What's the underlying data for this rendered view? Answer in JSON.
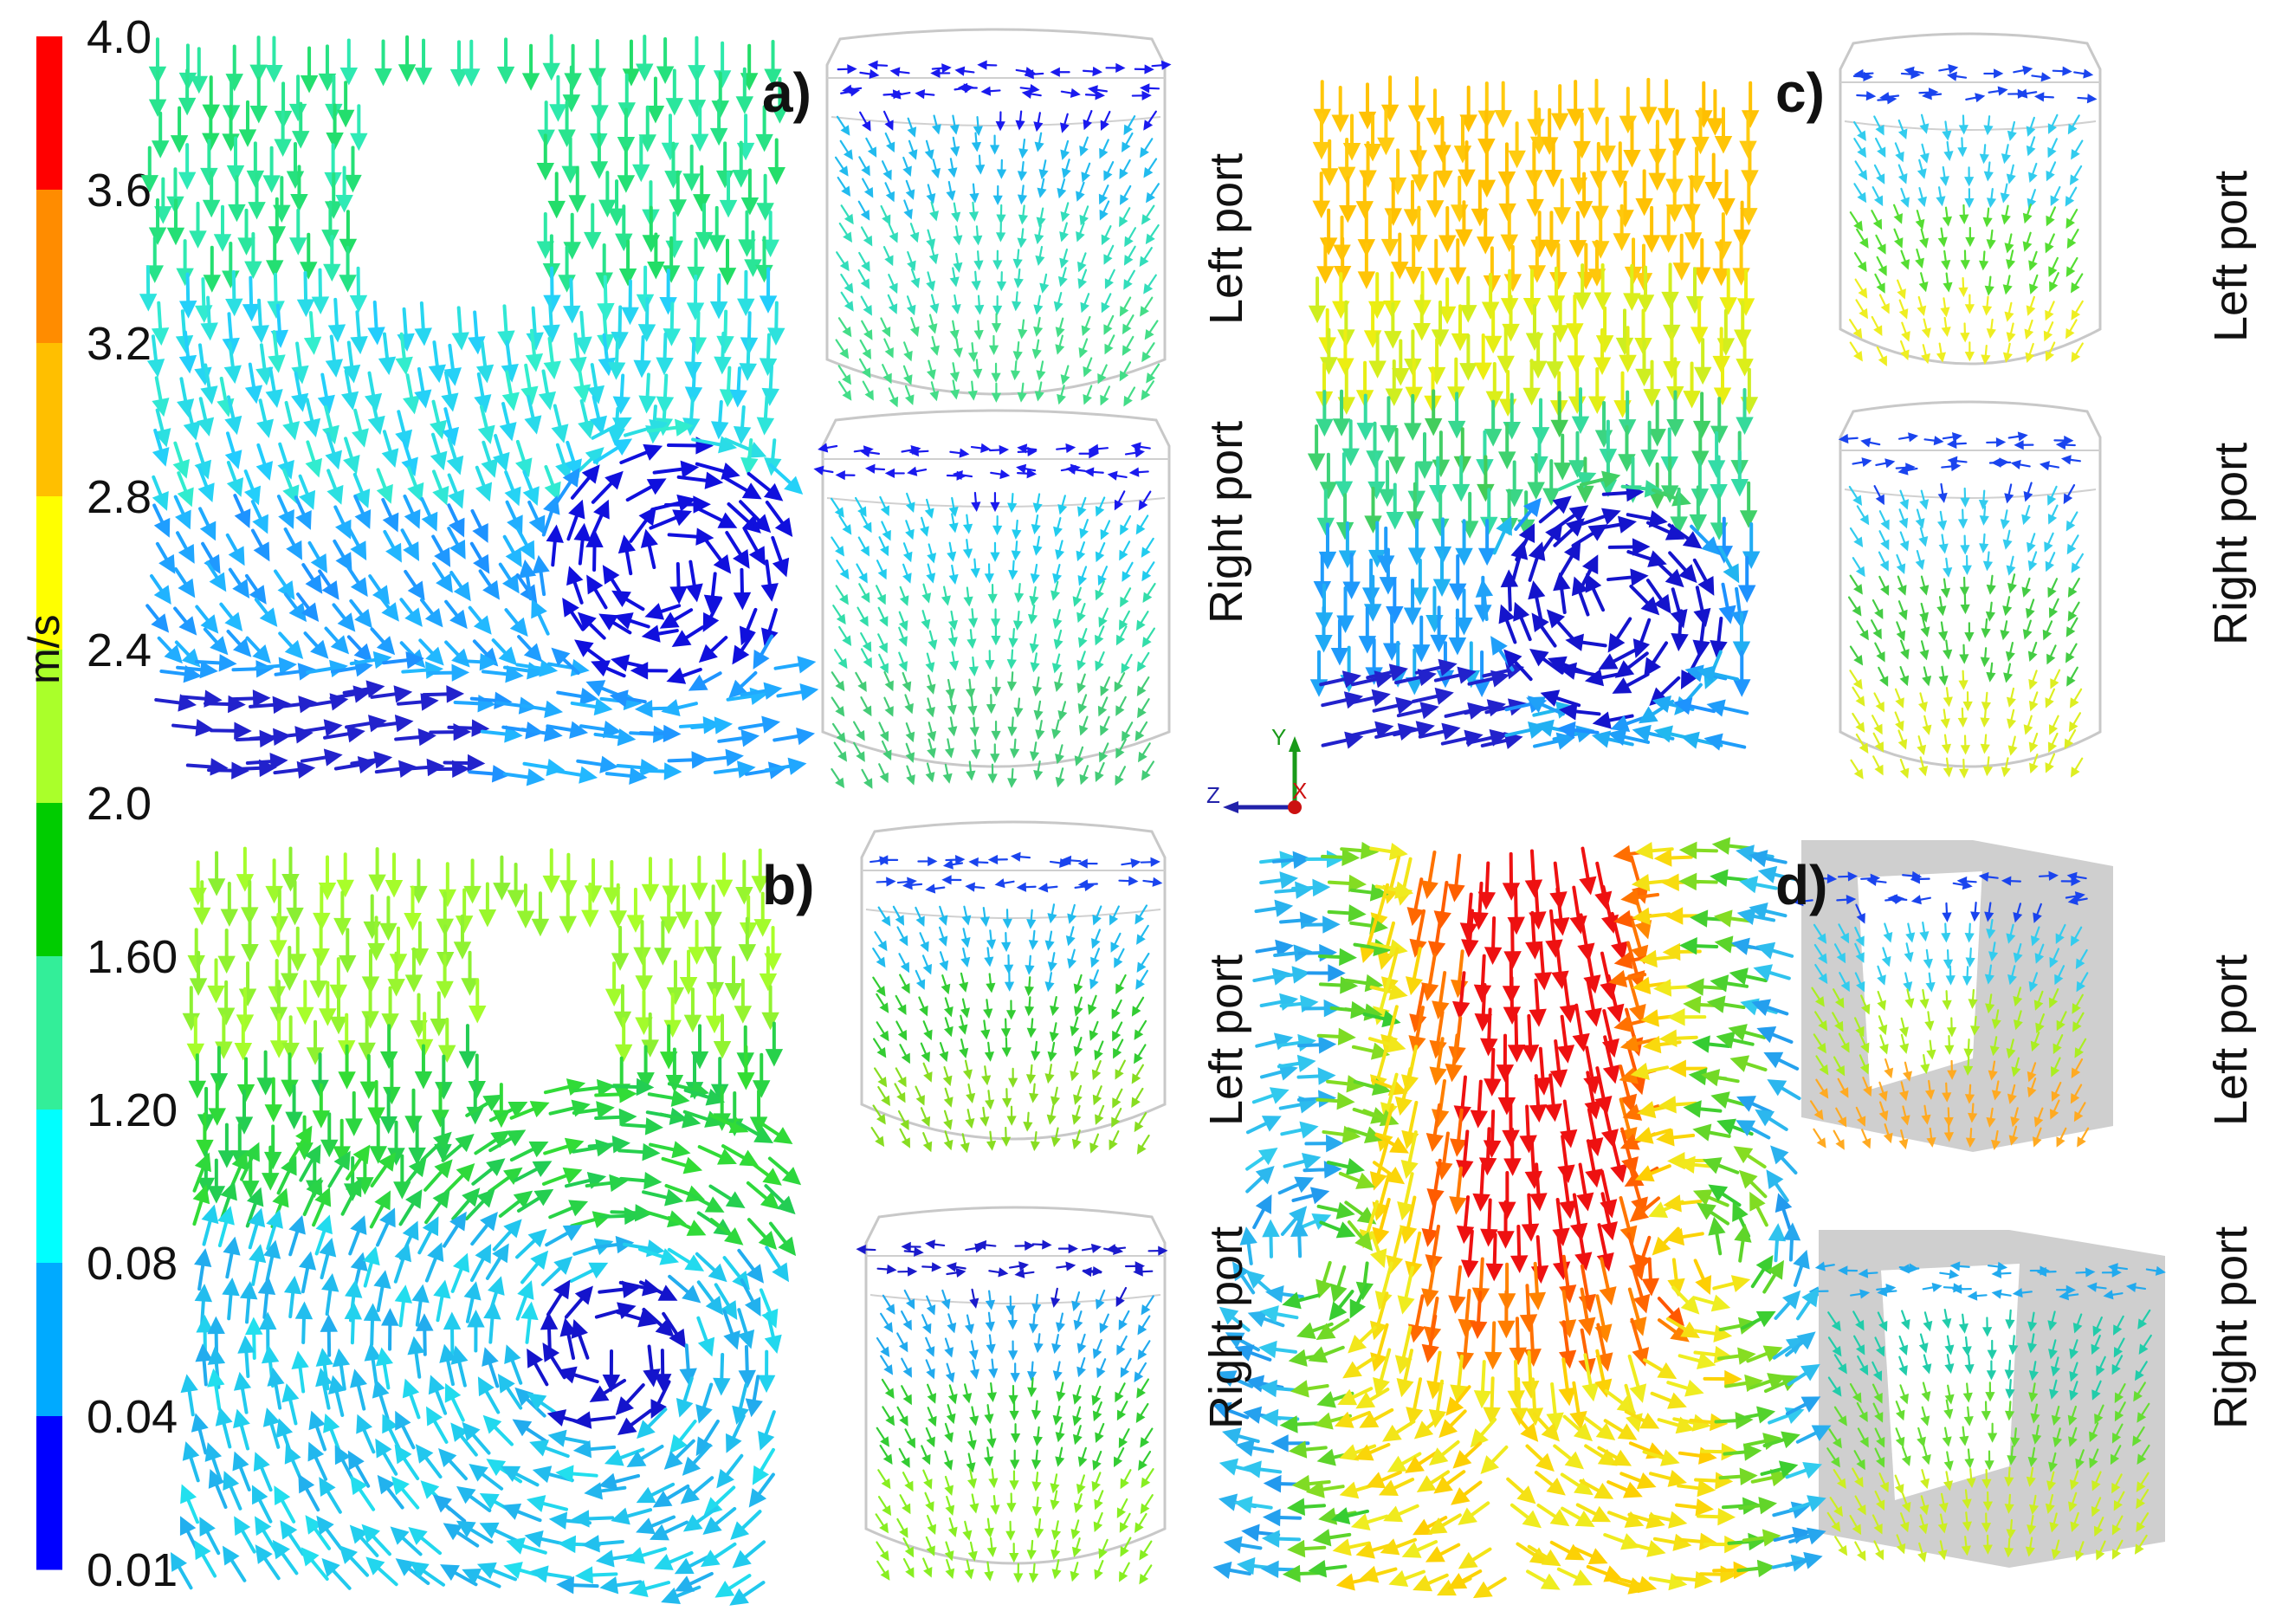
{
  "colorbar": {
    "unit": "m/s",
    "labels": [
      "4.0",
      "3.6",
      "3.2",
      "2.8",
      "2.4",
      "2.0",
      "1.60",
      "1.20",
      "0.08",
      "0.04",
      "0.01"
    ],
    "colors": [
      "#ff0000",
      "#ff8c00",
      "#ffbf00",
      "#ffff00",
      "#aaff2a",
      "#00cc00",
      "#33ee99",
      "#00ffff",
      "#00aaff",
      "#0000ff"
    ]
  },
  "panels": {
    "a": {
      "label": "a)",
      "left_port": "Left port",
      "right_port": "Right port"
    },
    "b": {
      "label": "b)",
      "left_port": "Left port",
      "right_port": "Right port"
    },
    "c": {
      "label": "c)",
      "left_port": "Left port",
      "right_port": "Right port"
    },
    "d": {
      "label": "d)",
      "left_port": "Left port",
      "right_port": "Right port"
    }
  },
  "axes_triad": {
    "y": "Y",
    "z": "Z",
    "x": "X"
  }
}
